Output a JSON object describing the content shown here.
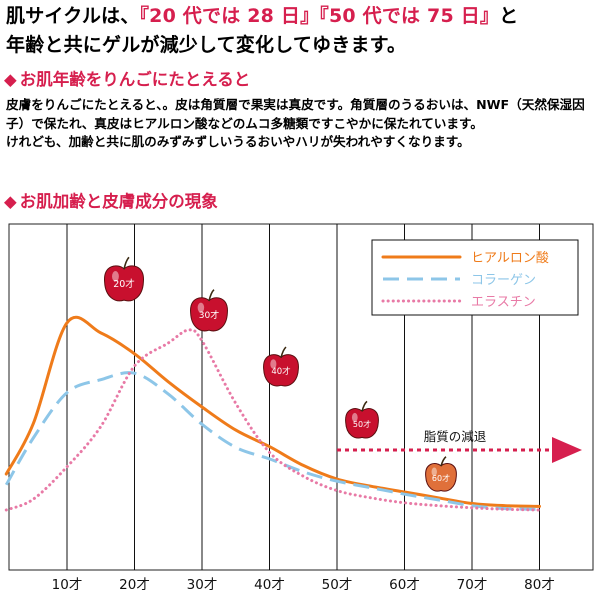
{
  "headline": {
    "line1_a": "肌サイクルは、",
    "line1_b": "『20 代では 28 日』『50 代では 75 日』",
    "line1_c": "と",
    "line2": "年齢と共にゲルが減少して変化してゆきます。"
  },
  "section1": {
    "title": "お肌年齢をりんごにたとえると",
    "marker": "◆"
  },
  "body": {
    "para1": "皮膚をりんごにたとえると、。皮は角質層で果実は真皮です。角質層のうるおいは、NWF（天然保湿因子）で保たれ、真皮はヒアルロン酸などのムコ多糖類ですこやかに保たれています。",
    "para2": "けれども、加齢と共に肌のみずみずしいうるおいやハリが失われやすくなります。"
  },
  "section2": {
    "title": "お肌加齢と皮膚成分の現象",
    "marker": "◆"
  },
  "colors": {
    "accent": "#d61f4e",
    "hyaluronic": "#ef7b1a",
    "collagen": "#8dc6e8",
    "elastin": "#e87aa6",
    "arrow": "#d61f4e",
    "apple_red": "#c8102e",
    "apple_orange": "#e0703a"
  },
  "chart_data": {
    "type": "line",
    "x": [
      10,
      20,
      30,
      40,
      50,
      60,
      70,
      80
    ],
    "x_tick_labels": [
      "10才",
      "20才",
      "30才",
      "40才",
      "50才",
      "60才",
      "70才",
      "80才"
    ],
    "y_scale": "relative",
    "grid": "vertical",
    "legend_position": "top-right",
    "series": [
      {
        "name": "ヒアルロン酸",
        "style": "solid",
        "color": "#ef7b1a",
        "points": [
          [
            1,
            0.5
          ],
          [
            5,
            1.2
          ],
          [
            10,
            2.6
          ],
          [
            15,
            2.46
          ],
          [
            20,
            2.17
          ],
          [
            25,
            1.78
          ],
          [
            30,
            1.43
          ],
          [
            35,
            1.11
          ],
          [
            40,
            0.88
          ],
          [
            45,
            0.62
          ],
          [
            50,
            0.43
          ],
          [
            55,
            0.33
          ],
          [
            60,
            0.25
          ],
          [
            65,
            0.17
          ],
          [
            70,
            0.09
          ],
          [
            75,
            0.06
          ],
          [
            80,
            0.05
          ]
        ]
      },
      {
        "name": "コラーゲン",
        "style": "dashed",
        "color": "#8dc6e8",
        "points": [
          [
            1,
            0.35
          ],
          [
            5,
            1.0
          ],
          [
            10,
            1.63
          ],
          [
            15,
            1.81
          ],
          [
            20,
            1.9
          ],
          [
            25,
            1.61
          ],
          [
            30,
            1.19
          ],
          [
            35,
            0.87
          ],
          [
            40,
            0.71
          ],
          [
            45,
            0.53
          ],
          [
            50,
            0.4
          ],
          [
            55,
            0.31
          ],
          [
            60,
            0.22
          ],
          [
            65,
            0.14
          ],
          [
            70,
            0.06
          ],
          [
            75,
            0.02
          ],
          [
            80,
            0.01
          ]
        ]
      },
      {
        "name": "エラスチン",
        "style": "dotted",
        "color": "#e87aa6",
        "points": [
          [
            1,
            0.0
          ],
          [
            5,
            0.15
          ],
          [
            10,
            0.6
          ],
          [
            15,
            1.16
          ],
          [
            20,
            2.0
          ],
          [
            25,
            2.32
          ],
          [
            28,
            2.5
          ],
          [
            30,
            2.35
          ],
          [
            35,
            1.48
          ],
          [
            40,
            0.8
          ],
          [
            45,
            0.47
          ],
          [
            50,
            0.27
          ],
          [
            55,
            0.17
          ],
          [
            60,
            0.1
          ],
          [
            65,
            0.06
          ],
          [
            70,
            0.03
          ],
          [
            75,
            0.01
          ],
          [
            80,
            0.0
          ]
        ]
      }
    ],
    "annotations": [
      {
        "text": "脂質の減退",
        "arrow_from_age": 50
      }
    ],
    "apples": [
      {
        "label": "20才",
        "age": 20,
        "color": "#c8102e"
      },
      {
        "label": "30才",
        "age": 30,
        "color": "#c8102e"
      },
      {
        "label": "40才",
        "age": 40,
        "color": "#c8102e"
      },
      {
        "label": "50才",
        "age": 50,
        "color": "#c8102e"
      },
      {
        "label": "60才",
        "age": 60,
        "color": "#e0703a"
      }
    ]
  }
}
